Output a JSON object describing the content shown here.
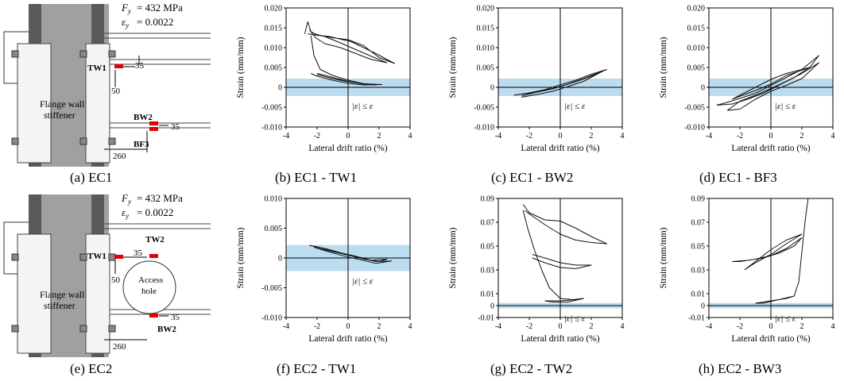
{
  "material": {
    "EC1": {
      "fy": "= 432 MPa",
      "ey": "= 0.0022"
    },
    "EC2": {
      "fy": "= 432 MPa",
      "ey": "= 0.0022"
    }
  },
  "schematic_labels": {
    "flange": "Flange wall",
    "stiffener": "stiffener",
    "access1": "Access",
    "access2": "hole",
    "d35": "35",
    "d50": "50",
    "d260": "260",
    "tw1": "TW1",
    "tw2": "TW2",
    "bw2": "BW2",
    "bf3": "BF3"
  },
  "captions": {
    "a": "(a) EC1",
    "b": "(b) EC1 - TW1",
    "c": "(c) EC1 - BW2",
    "d": "(d) EC1 - BF3",
    "e": "(e) EC2",
    "f": "(f) EC2 - TW1",
    "g": "(g) EC2 - TW2",
    "h": "(h) EC2 - BW3"
  },
  "colors": {
    "band": "#bcdcf0",
    "gauge": "#e00000",
    "grey": "#8a8a8a",
    "dark": "#555555"
  },
  "chart_data": [
    {
      "id": "b",
      "type": "line",
      "title": "EC1 - TW1",
      "xlabel": "Lateral drift ratio (%)",
      "ylabel": "Strain (mm/mm)",
      "xlim": [
        -4,
        4
      ],
      "ylim": [
        -0.01,
        0.02
      ],
      "xticks": [
        -4,
        -2,
        0,
        2,
        4
      ],
      "yticks": [
        "-0.010",
        "-0.005",
        "0",
        "0.005",
        "0.010",
        "0.015",
        "0.020"
      ],
      "band": [
        -0.0022,
        0.0022
      ],
      "band_label": "|ε| ≤ ε",
      "series": [
        {
          "name": "cycle-a",
          "x": [
            -2.8,
            -2.6,
            -2.4,
            -2.0,
            -1.0,
            0.0,
            1.0,
            2.0,
            3.0,
            1.8,
            0.2,
            -1.2,
            -2.2,
            -2.6
          ],
          "y": [
            0.0135,
            0.0165,
            0.014,
            0.0132,
            0.0125,
            0.012,
            0.0105,
            0.0075,
            0.006,
            0.0085,
            0.0115,
            0.0128,
            0.0132,
            0.0135
          ]
        },
        {
          "name": "cycle-b",
          "x": [
            -2.5,
            -2.1,
            -1.5,
            -0.5,
            0.5,
            1.5,
            2.5,
            1.5,
            0.5,
            -0.5,
            -1.5,
            -2.2
          ],
          "y": [
            0.0145,
            0.0125,
            0.011,
            0.01,
            0.0085,
            0.007,
            0.0062,
            0.0078,
            0.0095,
            0.0112,
            0.0128,
            0.0135
          ]
        },
        {
          "name": "drop",
          "x": [
            -2.4,
            -2.2,
            -1.8,
            -1.0,
            0.0,
            1.0,
            2.2,
            1.0,
            0.0,
            -1.0,
            -2.0,
            -2.4
          ],
          "y": [
            0.013,
            0.008,
            0.0045,
            0.003,
            0.0018,
            0.0009,
            0.0007,
            0.0006,
            0.001,
            0.0018,
            0.0028,
            0.0035
          ]
        },
        {
          "name": "small-loops",
          "x": [
            -2.0,
            -1.0,
            0.0,
            1.0,
            1.8,
            1.0,
            0.0,
            -1.0,
            -2.0
          ],
          "y": [
            0.0035,
            0.0025,
            0.0015,
            0.0008,
            0.0006,
            0.0009,
            0.0014,
            0.0022,
            0.0032
          ]
        }
      ]
    },
    {
      "id": "c",
      "type": "line",
      "title": "EC1 - BW2",
      "xlabel": "Lateral drift ratio (%)",
      "ylabel": "Strain (mm/mm)",
      "xlim": [
        -4,
        4
      ],
      "ylim": [
        -0.01,
        0.02
      ],
      "xticks": [
        -4,
        -2,
        0,
        2,
        4
      ],
      "yticks": [
        "-0.010",
        "-0.005",
        "0",
        "0.005",
        "0.010",
        "0.015",
        "0.020"
      ],
      "band": [
        -0.0022,
        0.0022
      ],
      "band_label": "|ε| ≤ ε",
      "series": [
        {
          "name": "loop-1",
          "x": [
            -3.0,
            -2.0,
            -1.0,
            0.0,
            1.0,
            2.0,
            3.0,
            2.0,
            1.0,
            0.0,
            -1.0,
            -2.0,
            -3.0
          ],
          "y": [
            -0.002,
            -0.0015,
            -0.0008,
            0.0002,
            0.0014,
            0.0028,
            0.0045,
            0.0033,
            0.0018,
            0.0006,
            -0.0006,
            -0.0014,
            -0.002
          ]
        },
        {
          "name": "loop-2",
          "x": [
            -2.5,
            -1.5,
            -0.5,
            0.5,
            1.5,
            2.7,
            1.5,
            0.5,
            -0.5,
            -1.5,
            -2.5
          ],
          "y": [
            -0.0025,
            -0.0018,
            -0.001,
            0.0002,
            0.0015,
            0.004,
            0.0022,
            0.0008,
            -0.0004,
            -0.0012,
            -0.0022
          ]
        }
      ]
    },
    {
      "id": "d",
      "type": "line",
      "title": "EC1 - BF3",
      "xlabel": "Lateral drift ratio (%)",
      "ylabel": "Strain (mm/mm)",
      "xlim": [
        -4,
        4
      ],
      "ylim": [
        -0.01,
        0.02
      ],
      "xticks": [
        -4,
        -2,
        0,
        2,
        4
      ],
      "yticks": [
        "-0.010",
        "-0.005",
        "0",
        "0.005",
        "0.010",
        "0.015",
        "0.020"
      ],
      "band": [
        -0.0022,
        0.0022
      ],
      "band_label": "|ε| ≤ ε",
      "series": [
        {
          "name": "loop-1",
          "x": [
            -3.5,
            -2.5,
            -1.5,
            -0.5,
            0.5,
            1.5,
            2.5,
            3.1,
            2.0,
            1.0,
            0.0,
            -1.0,
            -2.0,
            -3.0,
            -3.5
          ],
          "y": [
            -0.0045,
            -0.0042,
            -0.003,
            -0.0015,
            0.0005,
            0.0025,
            0.005,
            0.008,
            0.0045,
            0.0025,
            0.0005,
            -0.0015,
            -0.0028,
            -0.004,
            -0.0045
          ]
        },
        {
          "name": "loop-2",
          "x": [
            -2.0,
            -1.0,
            0.0,
            1.0,
            2.0,
            3.1,
            2.0,
            1.0,
            0.0,
            -1.0,
            -2.0,
            -2.8,
            -2.0
          ],
          "y": [
            -0.0055,
            -0.003,
            -0.001,
            0.0005,
            0.0022,
            0.0062,
            0.0035,
            0.0015,
            -0.0003,
            -0.002,
            -0.0035,
            -0.0058,
            -0.0055
          ]
        },
        {
          "name": "loop-3",
          "x": [
            -2.5,
            -1.0,
            0.0,
            1.0,
            2.5,
            1.0,
            0.0,
            -1.0,
            -2.5
          ],
          "y": [
            -0.003,
            0.0,
            0.002,
            0.0035,
            0.005,
            0.003,
            0.0008,
            -0.0008,
            -0.003
          ]
        }
      ]
    },
    {
      "id": "f",
      "type": "line",
      "title": "EC2 - TW1",
      "xlabel": "Lateral drift ratio (%)",
      "ylabel": "Strain (mm/mm)",
      "xlim": [
        -4,
        4
      ],
      "ylim": [
        -0.01,
        0.01
      ],
      "xticks": [
        -4,
        -2,
        0,
        2,
        4
      ],
      "yticks": [
        "-0.010",
        "-0.005",
        "0",
        "0.005",
        "0.010"
      ],
      "band": [
        -0.0022,
        0.0022
      ],
      "band_label": "|ε| ≤ ε",
      "series": [
        {
          "name": "loop-1",
          "x": [
            -2.5,
            -1.5,
            -0.5,
            0.5,
            1.5,
            2.5,
            2.0,
            1.0,
            0.0,
            -1.0,
            -2.0,
            -2.5
          ],
          "y": [
            0.0021,
            0.0016,
            0.0009,
            0.0003,
            -0.0004,
            -0.0002,
            -0.0006,
            -0.0002,
            0.0005,
            0.0012,
            0.0019,
            0.0021
          ]
        },
        {
          "name": "loop-2",
          "x": [
            -2.2,
            -1.2,
            -0.2,
            0.8,
            1.8,
            2.8,
            1.8,
            0.8,
            -0.2,
            -1.2,
            -2.2
          ],
          "y": [
            0.0018,
            0.0012,
            0.0006,
            0.0,
            -0.0006,
            -0.0005,
            -0.0009,
            -0.0003,
            0.0003,
            0.001,
            0.0018
          ]
        }
      ]
    },
    {
      "id": "g",
      "type": "line",
      "title": "EC2 - TW2",
      "xlabel": "Lateral drift ratio (%)",
      "ylabel": "Strain (mm/mm)",
      "xlim": [
        -4,
        4
      ],
      "ylim": [
        -0.01,
        0.09
      ],
      "xticks": [
        -4,
        -2,
        0,
        2,
        4
      ],
      "yticks": [
        "-0.01",
        "0",
        "0.01",
        "0.03",
        "0.05",
        "0.07",
        "0.09"
      ],
      "band": [
        -0.0022,
        0.0022
      ],
      "band_label": "|ε| ≤ ε",
      "series": [
        {
          "name": "top-loop",
          "x": [
            -2.4,
            -2.0,
            -1.0,
            0.0,
            1.0,
            2.0,
            3.0,
            2.0,
            1.0,
            0.0,
            -1.0,
            -2.0,
            -2.3
          ],
          "y": [
            0.085,
            0.078,
            0.072,
            0.071,
            0.065,
            0.058,
            0.052,
            0.053,
            0.055,
            0.06,
            0.068,
            0.077,
            0.08
          ]
        },
        {
          "name": "fall",
          "x": [
            -2.4,
            -2.1,
            -1.7,
            -1.2,
            -0.7,
            0.0,
            0.8,
            1.5
          ],
          "y": [
            0.08,
            0.065,
            0.048,
            0.03,
            0.015,
            0.006,
            0.005,
            0.006
          ]
        },
        {
          "name": "mid-loops",
          "x": [
            -1.8,
            -1.0,
            0.0,
            1.0,
            2.0,
            1.0,
            0.0,
            -1.0,
            -1.8
          ],
          "y": [
            0.043,
            0.04,
            0.036,
            0.034,
            0.034,
            0.031,
            0.032,
            0.036,
            0.04
          ]
        },
        {
          "name": "low",
          "x": [
            -1.0,
            0.0,
            1.0,
            1.5,
            0.5,
            -0.5,
            -1.0
          ],
          "y": [
            0.004,
            0.004,
            0.005,
            0.006,
            0.003,
            0.003,
            0.004
          ]
        }
      ]
    },
    {
      "id": "h",
      "type": "line",
      "title": "EC2 - BW3",
      "xlabel": "Lateral drift ratio (%)",
      "ylabel": "Strain (mm/mm)",
      "xlim": [
        -4,
        4
      ],
      "ylim": [
        -0.01,
        0.09
      ],
      "xticks": [
        -4,
        -2,
        0,
        2,
        4
      ],
      "yticks": [
        "-0.01",
        "0",
        "0.01",
        "0.03",
        "0.05",
        "0.07",
        "0.09"
      ],
      "band": [
        -0.0022,
        0.0022
      ],
      "band_label": "|ε| ≤ ε",
      "series": [
        {
          "name": "loop-1",
          "x": [
            -2.5,
            -1.5,
            -0.5,
            0.5,
            1.5,
            2.0,
            1.0,
            0.0,
            -1.0,
            -2.0,
            -2.5
          ],
          "y": [
            0.037,
            0.038,
            0.04,
            0.044,
            0.05,
            0.057,
            0.048,
            0.042,
            0.039,
            0.037,
            0.037
          ]
        },
        {
          "name": "loop-2",
          "x": [
            -1.7,
            -1.0,
            0.0,
            1.0,
            2.0,
            1.0,
            0.0,
            -1.0,
            -1.7
          ],
          "y": [
            0.03,
            0.037,
            0.047,
            0.055,
            0.06,
            0.052,
            0.043,
            0.036,
            0.03
          ]
        },
        {
          "name": "spike",
          "x": [
            1.5,
            1.8,
            2.0,
            2.2,
            2.4
          ],
          "y": [
            0.008,
            0.02,
            0.045,
            0.07,
            0.09
          ]
        },
        {
          "name": "low",
          "x": [
            -1.0,
            0.0,
            1.0,
            1.5,
            0.5,
            -0.5,
            -1.0
          ],
          "y": [
            0.002,
            0.004,
            0.006,
            0.008,
            0.005,
            0.002,
            0.002
          ]
        }
      ]
    }
  ]
}
